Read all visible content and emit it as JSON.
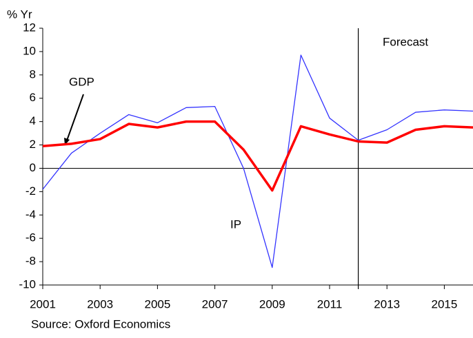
{
  "chart_data": {
    "type": "line",
    "y_label": "% Yr",
    "source": "Source: Oxford Economics",
    "annotations": {
      "forecast": "Forecast",
      "forecast_start": 2012
    },
    "x": [
      2001,
      2002,
      2003,
      2004,
      2005,
      2006,
      2007,
      2008,
      2009,
      2010,
      2011,
      2012,
      2013,
      2014,
      2015,
      2016
    ],
    "series": [
      {
        "name": "GDP",
        "color": "#ff0000",
        "values": [
          1.9,
          2.1,
          2.5,
          3.8,
          3.5,
          4.0,
          4.0,
          1.6,
          -1.9,
          3.6,
          2.9,
          2.3,
          2.2,
          3.3,
          3.6,
          3.5
        ]
      },
      {
        "name": "IP",
        "color": "#3333ff",
        "values": [
          -1.8,
          1.3,
          3.0,
          4.6,
          3.9,
          5.2,
          5.3,
          0.0,
          -8.5,
          9.7,
          4.3,
          2.4,
          3.3,
          4.8,
          5.0,
          4.9
        ]
      }
    ],
    "xlim": [
      2001,
      2016
    ],
    "xticks": [
      2001,
      2003,
      2005,
      2007,
      2009,
      2011,
      2013,
      2015
    ],
    "ylim": [
      -10,
      12
    ],
    "yticks": [
      -10,
      -8,
      -6,
      -4,
      -2,
      0,
      2,
      4,
      6,
      8,
      10,
      12
    ],
    "grid": false
  }
}
